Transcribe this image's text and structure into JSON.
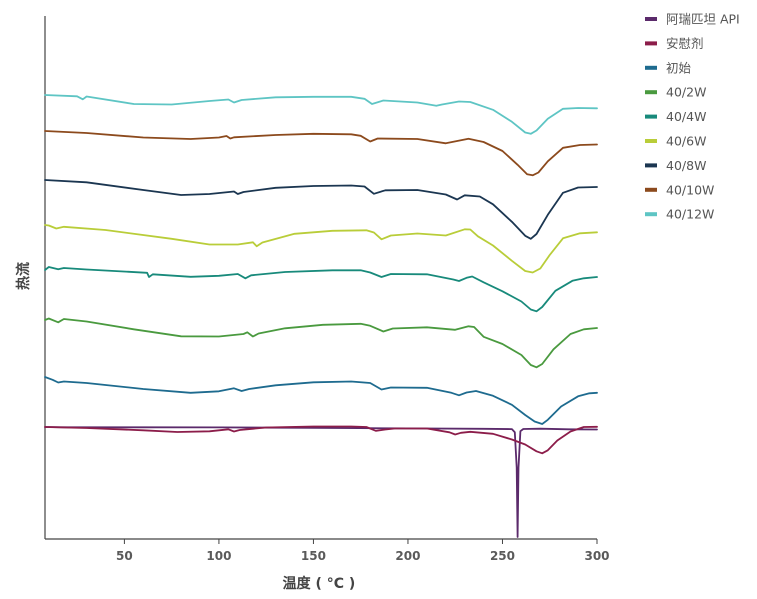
{
  "chart_data": {
    "type": "line",
    "xlabel": "温度 ( °C )",
    "ylabel": "热流",
    "xlim": [
      8,
      300
    ],
    "ylim": [
      0,
      1
    ],
    "x_ticks": [
      50,
      100,
      150,
      200,
      250,
      300
    ],
    "grid": false,
    "legend_position": "top-right",
    "series": [
      {
        "name": "阿瑞匹坦 API",
        "color": "#5b2a6b",
        "points": [
          [
            8,
            0.787
          ],
          [
            20,
            0.785
          ],
          [
            60,
            0.785
          ],
          [
            100,
            0.784
          ],
          [
            150,
            0.781
          ],
          [
            200,
            0.777
          ],
          [
            240,
            0.774
          ],
          [
            255,
            0.772
          ],
          [
            256.5,
            0.75
          ],
          [
            257.5,
            0.5
          ],
          [
            258,
            0.01
          ],
          [
            258.5,
            0.5
          ],
          [
            259.5,
            0.757
          ],
          [
            261,
            0.773
          ],
          [
            270,
            0.775
          ],
          [
            285,
            0.771
          ],
          [
            300,
            0.769
          ]
        ]
      },
      {
        "name": "安慰剂",
        "color": "#8c1d4a",
        "points": [
          [
            8,
            0.893
          ],
          [
            30,
            0.889
          ],
          [
            60,
            0.88
          ],
          [
            78,
            0.873
          ],
          [
            95,
            0.876
          ],
          [
            105,
            0.884
          ],
          [
            108,
            0.875
          ],
          [
            111,
            0.881
          ],
          [
            125,
            0.891
          ],
          [
            150,
            0.895
          ],
          [
            170,
            0.895
          ],
          [
            178,
            0.893
          ],
          [
            183,
            0.878
          ],
          [
            188,
            0.883
          ],
          [
            193,
            0.887
          ],
          [
            210,
            0.887
          ],
          [
            222,
            0.872
          ],
          [
            225,
            0.863
          ],
          [
            228,
            0.87
          ],
          [
            233,
            0.874
          ],
          [
            245,
            0.866
          ],
          [
            255,
            0.843
          ],
          [
            262,
            0.823
          ],
          [
            268,
            0.796
          ],
          [
            271,
            0.788
          ],
          [
            274,
            0.8
          ],
          [
            279,
            0.839
          ],
          [
            286,
            0.875
          ],
          [
            293,
            0.893
          ],
          [
            300,
            0.894
          ]
        ]
      },
      {
        "name": "初始",
        "color": "#1e6b8f",
        "points": [
          [
            8,
            1.0
          ],
          [
            12,
            0.989
          ],
          [
            15,
            0.978
          ],
          [
            18,
            0.982
          ],
          [
            30,
            0.976
          ],
          [
            60,
            0.952
          ],
          [
            85,
            0.937
          ],
          [
            100,
            0.943
          ],
          [
            108,
            0.955
          ],
          [
            112,
            0.944
          ],
          [
            116,
            0.952
          ],
          [
            130,
            0.967
          ],
          [
            150,
            0.979
          ],
          [
            170,
            0.982
          ],
          [
            180,
            0.976
          ],
          [
            186,
            0.95
          ],
          [
            191,
            0.958
          ],
          [
            210,
            0.957
          ],
          [
            223,
            0.937
          ],
          [
            227,
            0.927
          ],
          [
            231,
            0.938
          ],
          [
            236,
            0.944
          ],
          [
            245,
            0.925
          ],
          [
            255,
            0.889
          ],
          [
            262,
            0.848
          ],
          [
            267,
            0.822
          ],
          [
            271,
            0.812
          ],
          [
            274,
            0.829
          ],
          [
            281,
            0.882
          ],
          [
            290,
            0.923
          ],
          [
            296,
            0.935
          ],
          [
            300,
            0.937
          ]
        ]
      },
      {
        "name": "40/2W",
        "color": "#4a9a3f",
        "points": [
          [
            8,
            1.0
          ],
          [
            10,
            1.006
          ],
          [
            15,
            0.991
          ],
          [
            18,
            1.004
          ],
          [
            30,
            0.994
          ],
          [
            55,
            0.963
          ],
          [
            80,
            0.935
          ],
          [
            100,
            0.934
          ],
          [
            113,
            0.944
          ],
          [
            115,
            0.951
          ],
          [
            118,
            0.934
          ],
          [
            121,
            0.946
          ],
          [
            135,
            0.967
          ],
          [
            155,
            0.981
          ],
          [
            175,
            0.985
          ],
          [
            180,
            0.977
          ],
          [
            187,
            0.954
          ],
          [
            192,
            0.966
          ],
          [
            210,
            0.971
          ],
          [
            225,
            0.961
          ],
          [
            232,
            0.975
          ],
          [
            235,
            0.972
          ],
          [
            240,
            0.933
          ],
          [
            250,
            0.904
          ],
          [
            260,
            0.86
          ],
          [
            265,
            0.82
          ],
          [
            268,
            0.811
          ],
          [
            271,
            0.824
          ],
          [
            277,
            0.883
          ],
          [
            286,
            0.944
          ],
          [
            293,
            0.963
          ],
          [
            300,
            0.968
          ]
        ]
      },
      {
        "name": "40/4W",
        "color": "#188a7b",
        "points": [
          [
            8,
            1.0
          ],
          [
            10,
            1.012
          ],
          [
            15,
            1.003
          ],
          [
            18,
            1.008
          ],
          [
            30,
            1.002
          ],
          [
            62,
            0.989
          ],
          [
            63,
            0.972
          ],
          [
            65,
            0.983
          ],
          [
            85,
            0.973
          ],
          [
            100,
            0.977
          ],
          [
            110,
            0.984
          ],
          [
            114,
            0.967
          ],
          [
            117,
            0.979
          ],
          [
            135,
            0.992
          ],
          [
            160,
            0.999
          ],
          [
            175,
            0.999
          ],
          [
            180,
            0.99
          ],
          [
            186,
            0.972
          ],
          [
            191,
            0.984
          ],
          [
            210,
            0.983
          ],
          [
            224,
            0.962
          ],
          [
            227,
            0.956
          ],
          [
            231,
            0.969
          ],
          [
            234,
            0.974
          ],
          [
            240,
            0.951
          ],
          [
            250,
            0.915
          ],
          [
            260,
            0.874
          ],
          [
            265,
            0.842
          ],
          [
            268,
            0.835
          ],
          [
            271,
            0.852
          ],
          [
            278,
            0.917
          ],
          [
            287,
            0.957
          ],
          [
            293,
            0.967
          ],
          [
            300,
            0.972
          ]
        ]
      },
      {
        "name": "40/6W",
        "color": "#b9cd39",
        "points": [
          [
            8,
            1.0
          ],
          [
            10,
            0.998
          ],
          [
            14,
            0.986
          ],
          [
            18,
            0.993
          ],
          [
            40,
            0.98
          ],
          [
            75,
            0.945
          ],
          [
            95,
            0.922
          ],
          [
            110,
            0.922
          ],
          [
            118,
            0.931
          ],
          [
            120,
            0.915
          ],
          [
            123,
            0.93
          ],
          [
            140,
            0.965
          ],
          [
            160,
            0.977
          ],
          [
            178,
            0.979
          ],
          [
            182,
            0.97
          ],
          [
            186,
            0.943
          ],
          [
            191,
            0.958
          ],
          [
            205,
            0.966
          ],
          [
            220,
            0.958
          ],
          [
            230,
            0.983
          ],
          [
            233,
            0.982
          ],
          [
            237,
            0.955
          ],
          [
            245,
            0.918
          ],
          [
            255,
            0.857
          ],
          [
            262,
            0.816
          ],
          [
            266,
            0.81
          ],
          [
            270,
            0.826
          ],
          [
            275,
            0.88
          ],
          [
            282,
            0.947
          ],
          [
            291,
            0.967
          ],
          [
            300,
            0.971
          ]
        ]
      },
      {
        "name": "40/8W",
        "color": "#1b3651",
        "points": [
          [
            8,
            1.0
          ],
          [
            30,
            0.991
          ],
          [
            60,
            0.96
          ],
          [
            80,
            0.94
          ],
          [
            95,
            0.944
          ],
          [
            108,
            0.954
          ],
          [
            110,
            0.944
          ],
          [
            113,
            0.952
          ],
          [
            130,
            0.969
          ],
          [
            150,
            0.976
          ],
          [
            170,
            0.978
          ],
          [
            177,
            0.974
          ],
          [
            182,
            0.945
          ],
          [
            188,
            0.959
          ],
          [
            205,
            0.96
          ],
          [
            220,
            0.942
          ],
          [
            226,
            0.922
          ],
          [
            230,
            0.939
          ],
          [
            238,
            0.934
          ],
          [
            245,
            0.903
          ],
          [
            255,
            0.833
          ],
          [
            262,
            0.777
          ],
          [
            265,
            0.765
          ],
          [
            268,
            0.784
          ],
          [
            274,
            0.861
          ],
          [
            282,
            0.949
          ],
          [
            290,
            0.97
          ],
          [
            300,
            0.972
          ]
        ]
      },
      {
        "name": "40/10W",
        "color": "#8c4a1d",
        "points": [
          [
            8,
            1.0
          ],
          [
            30,
            0.992
          ],
          [
            60,
            0.974
          ],
          [
            85,
            0.968
          ],
          [
            100,
            0.974
          ],
          [
            104,
            0.98
          ],
          [
            106,
            0.97
          ],
          [
            108,
            0.975
          ],
          [
            130,
            0.984
          ],
          [
            150,
            0.989
          ],
          [
            170,
            0.987
          ],
          [
            175,
            0.981
          ],
          [
            180,
            0.958
          ],
          [
            184,
            0.97
          ],
          [
            205,
            0.968
          ],
          [
            220,
            0.951
          ],
          [
            232,
            0.969
          ],
          [
            240,
            0.956
          ],
          [
            250,
            0.92
          ],
          [
            258,
            0.865
          ],
          [
            263,
            0.827
          ],
          [
            266,
            0.823
          ],
          [
            269,
            0.834
          ],
          [
            274,
            0.879
          ],
          [
            282,
            0.933
          ],
          [
            291,
            0.944
          ],
          [
            300,
            0.946
          ]
        ]
      },
      {
        "name": "40/12W",
        "color": "#5ec5c4",
        "points": [
          [
            8,
            1.0
          ],
          [
            25,
            0.995
          ],
          [
            28,
            0.983
          ],
          [
            30,
            0.994
          ],
          [
            55,
            0.964
          ],
          [
            75,
            0.962
          ],
          [
            95,
            0.976
          ],
          [
            105,
            0.982
          ],
          [
            108,
            0.97
          ],
          [
            112,
            0.98
          ],
          [
            130,
            0.991
          ],
          [
            150,
            0.993
          ],
          [
            170,
            0.993
          ],
          [
            177,
            0.985
          ],
          [
            181,
            0.964
          ],
          [
            187,
            0.978
          ],
          [
            205,
            0.97
          ],
          [
            215,
            0.957
          ],
          [
            218,
            0.962
          ],
          [
            227,
            0.974
          ],
          [
            233,
            0.972
          ],
          [
            245,
            0.941
          ],
          [
            255,
            0.893
          ],
          [
            262,
            0.85
          ],
          [
            265,
            0.845
          ],
          [
            268,
            0.858
          ],
          [
            274,
            0.905
          ],
          [
            282,
            0.945
          ],
          [
            290,
            0.948
          ],
          [
            300,
            0.947
          ]
        ]
      }
    ]
  }
}
